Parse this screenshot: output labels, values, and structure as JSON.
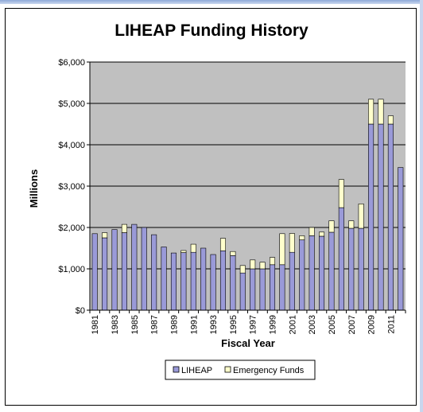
{
  "chart_data": {
    "type": "bar",
    "stacked": true,
    "title": "LIHEAP Funding History",
    "xlabel": "Fiscal Year",
    "ylabel": "Millions",
    "ylim": [
      0,
      6000
    ],
    "yticks": [
      "$0",
      "$1,000",
      "$2,000",
      "$3,000",
      "$4,000",
      "$5,000",
      "$6,000"
    ],
    "ytick_values": [
      0,
      1000,
      2000,
      3000,
      4000,
      5000,
      6000
    ],
    "grid": true,
    "legend_position": "bottom",
    "categories": [
      "1981",
      "1982",
      "1983",
      "1984",
      "1985",
      "1986",
      "1987",
      "1988",
      "1989",
      "1990",
      "1991",
      "1992",
      "1993",
      "1994",
      "1995",
      "1996",
      "1997",
      "1998",
      "1999",
      "2000",
      "2001",
      "2002",
      "2003",
      "2004",
      "2005",
      "2006",
      "2007",
      "2008",
      "2009",
      "2010",
      "2011",
      "2012"
    ],
    "tick_labels": [
      "1981",
      "1983",
      "1985",
      "1987",
      "1989",
      "1991",
      "1993",
      "1995",
      "1997",
      "1999",
      "2001",
      "2003",
      "2005",
      "2007",
      "2009",
      "2011"
    ],
    "series": [
      {
        "name": "LIHEAP",
        "color": "#9a9ad8",
        "values": [
          1850,
          1750,
          1950,
          1875,
          2075,
          2000,
          1825,
          1530,
          1383,
          1393,
          1400,
          1500,
          1346,
          1437,
          1319,
          900,
          1000,
          1000,
          1100,
          1100,
          1400,
          1700,
          1800,
          1789,
          1885,
          2480,
          1980,
          1980,
          4500,
          4500,
          4500,
          3450
        ]
      },
      {
        "name": "Emergency Funds",
        "color": "#ffffcc",
        "values": [
          0,
          123,
          0,
          200,
          0,
          0,
          0,
          0,
          0,
          50,
          195,
          0,
          0,
          300,
          100,
          180,
          215,
          160,
          175,
          750,
          455,
          100,
          200,
          100,
          277,
          680,
          181,
          590,
          600,
          600,
          200,
          0
        ]
      }
    ]
  }
}
